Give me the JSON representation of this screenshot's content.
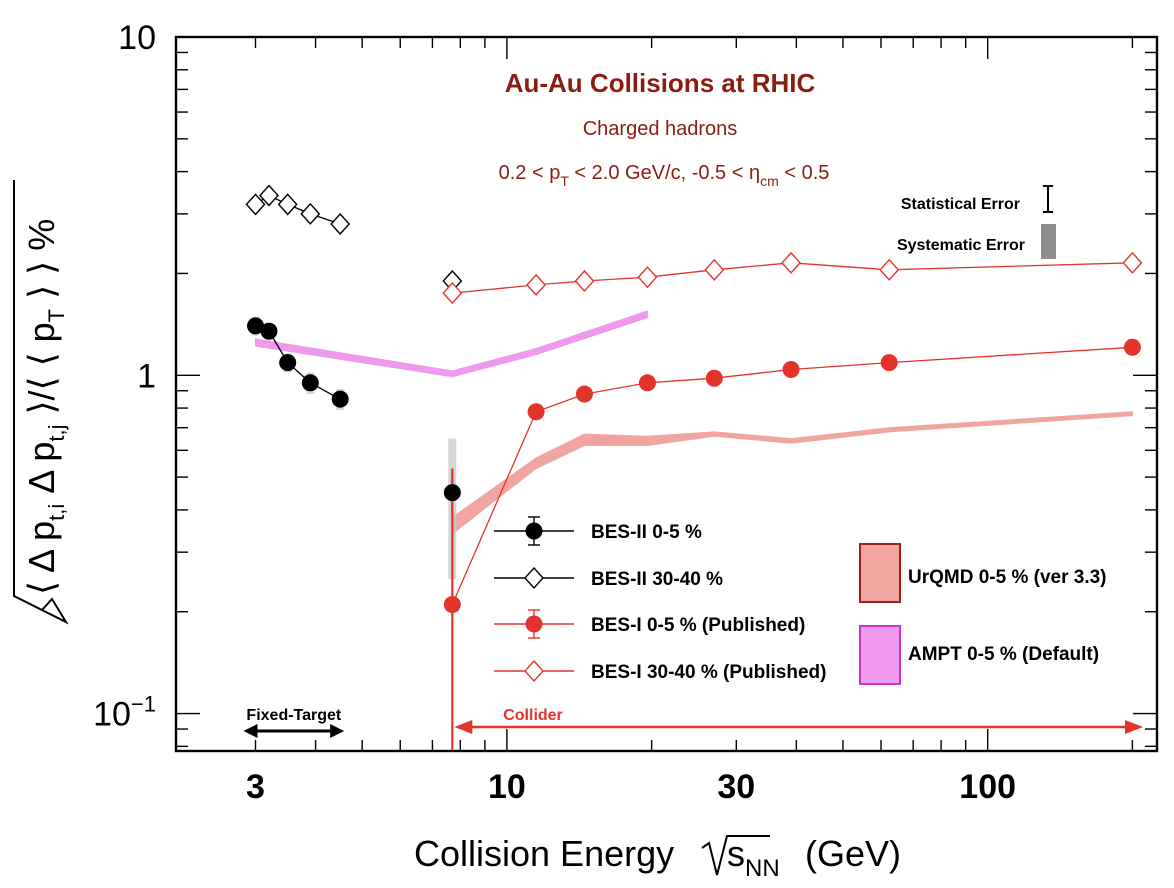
{
  "chart_data": {
    "type": "scatter",
    "title": "Au-Au Collisions at RHIC",
    "subtitle": "Charged hadrons",
    "cuts_label": {
      "pre": "0.2 < p",
      "sub1": "T",
      "mid": " < 2.0 GeV/c, -0.5 < η",
      "sub2": "cm",
      "post": " < 0.5"
    },
    "xlabel": {
      "main": "Collision Energy ",
      "var": "s",
      "sub": "NN",
      "unit": " (GeV)"
    },
    "ylabel": {
      "p1": "⟨ Δ p",
      "s1": "t,i",
      "p2": " Δ p",
      "s2": "t,j",
      "p3": " ⟩/⟨ ⟨ p",
      "s3": "T",
      "p4": " ⟩ ⟩ %"
    },
    "x_scale": "log",
    "y_scale": "log",
    "xlim": [
      2.05,
      225
    ],
    "ylim": [
      0.0775,
      10
    ],
    "x_ticks": [
      {
        "value": 3,
        "label": "3"
      },
      {
        "value": 10,
        "label": "10"
      },
      {
        "value": 30,
        "label": "30"
      },
      {
        "value": 100,
        "label": "100"
      }
    ],
    "y_ticks": [
      {
        "value": 10,
        "label": "10",
        "sup": ""
      },
      {
        "value": 1,
        "label": "1",
        "sup": ""
      },
      {
        "value": 0.1,
        "label": "10",
        "sup": "−1"
      }
    ],
    "series": [
      {
        "name": "BES-II 0-5 %",
        "kind": "data",
        "marker": "filled-circle",
        "color": "#000000",
        "x": [
          3.0,
          3.2,
          3.5,
          3.9,
          4.5,
          7.7
        ],
        "y": [
          1.4,
          1.35,
          1.09,
          0.95,
          0.85,
          0.45
        ],
        "stat_err": [
          0.03,
          0.03,
          0.03,
          0.03,
          0.03,
          0.06
        ],
        "sys_err": [
          0.09,
          0.08,
          0.07,
          0.07,
          0.06,
          0.2
        ]
      },
      {
        "name": "BES-II 30-40 %",
        "kind": "data",
        "marker": "open-diamond",
        "color": "#000000",
        "x": [
          3.0,
          3.2,
          3.5,
          3.9,
          4.5,
          7.7
        ],
        "y": [
          3.2,
          3.4,
          3.2,
          3.0,
          2.8,
          1.9
        ],
        "stat_err": [
          0.12,
          0.12,
          0.12,
          0.12,
          0.12,
          0.1
        ],
        "sys_err": [
          0.15,
          0.15,
          0.15,
          0.15,
          0.15,
          0.1
        ]
      },
      {
        "name": "BES-I 0-5 % (Published)",
        "kind": "data",
        "marker": "filled-circle",
        "color": "#e3342b",
        "x": [
          7.7,
          11.5,
          14.5,
          19.6,
          27,
          39,
          62.4,
          200
        ],
        "y": [
          0.21,
          0.78,
          0.88,
          0.95,
          0.98,
          1.04,
          1.09,
          1.21
        ],
        "stat_err": [
          0.32,
          0.02,
          0.02,
          0.02,
          0.02,
          0.02,
          0.02,
          0.02
        ],
        "sys_err": [
          0.0,
          0.03,
          0.03,
          0.02,
          0.02,
          0.02,
          0.02,
          0.02
        ]
      },
      {
        "name": "BES-I 30-40 % (Published)",
        "kind": "data",
        "marker": "open-diamond",
        "color": "#e3342b",
        "x": [
          7.7,
          11.5,
          14.5,
          19.6,
          27,
          39,
          62.4,
          200
        ],
        "y": [
          1.75,
          1.85,
          1.9,
          1.95,
          2.05,
          2.15,
          2.05,
          2.15
        ],
        "stat_err": [
          0.1,
          0.06,
          0.06,
          0.06,
          0.06,
          0.06,
          0.06,
          0.06
        ],
        "sys_err": [
          0.05,
          0.05,
          0.05,
          0.05,
          0.05,
          0.05,
          0.05,
          0.05
        ]
      },
      {
        "name": "UrQMD 0-5 % (ver 3.3)",
        "kind": "band",
        "color": "#f0a5a0",
        "stroke": "#9c2118",
        "x": [
          7.7,
          11.5,
          14.5,
          19.6,
          27,
          39,
          62.4,
          200
        ],
        "y_low": [
          0.34,
          0.53,
          0.62,
          0.62,
          0.66,
          0.63,
          0.68,
          0.76
        ],
        "y_high": [
          0.38,
          0.57,
          0.67,
          0.66,
          0.68,
          0.65,
          0.7,
          0.78
        ]
      },
      {
        "name": "AMPT 0-5 % (Default)",
        "kind": "band",
        "color": "#ee99ee",
        "stroke": "#cc33cc",
        "x": [
          3.0,
          7.7,
          11.5,
          19.6
        ],
        "y_low": [
          1.22,
          0.99,
          1.15,
          1.48
        ],
        "y_high": [
          1.28,
          1.03,
          1.2,
          1.55
        ]
      }
    ],
    "legend_position": "bottom-center",
    "error_legend": {
      "stat": "Statistical Error",
      "sys": "Systematic Error"
    },
    "regions": {
      "fixed_target": {
        "label": "Fixed-Target",
        "x_from": 3.0,
        "x_to": 4.5
      },
      "collider": {
        "label": "Collider",
        "x_from": 7.7,
        "x_to": 210
      }
    },
    "colors": {
      "title": "#8b1c13",
      "red": "#e3342b",
      "black": "#000000"
    }
  }
}
